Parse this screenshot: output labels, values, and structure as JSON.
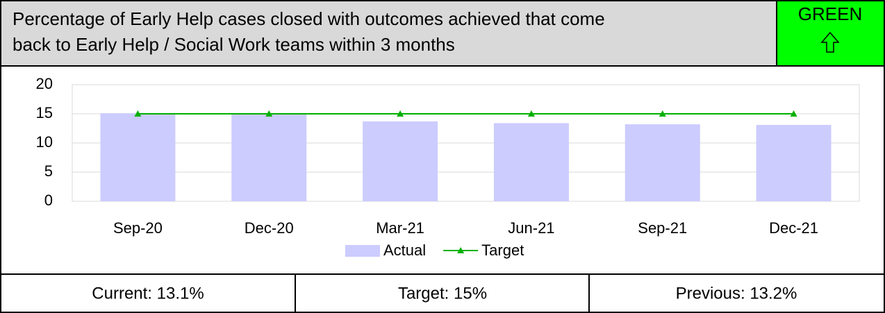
{
  "header": {
    "title": [
      "Percentage of Early Help cases closed with outcomes achieved that come",
      "back to Early Help / Social Work teams within 3 months"
    ],
    "status": "GREEN"
  },
  "chart_data": {
    "type": "bar",
    "categories": [
      "Sep-20",
      "Dec-20",
      "Mar-21",
      "Jun-21",
      "Sep-21",
      "Dec-21"
    ],
    "series": [
      {
        "name": "Actual",
        "color": "#ccccff",
        "values": [
          15.1,
          15.0,
          13.7,
          13.4,
          13.2,
          13.1
        ]
      },
      {
        "name": "Target",
        "color": "#00b000",
        "type": "line",
        "values": [
          15,
          15,
          15,
          15,
          15,
          15
        ]
      }
    ],
    "ylim": [
      0,
      20
    ],
    "yticks": [
      0,
      5,
      10,
      15,
      20
    ],
    "grid": true
  },
  "footer": [
    "Current: 13.1%",
    "Target: 15%",
    "Previous: 13.2%"
  ]
}
